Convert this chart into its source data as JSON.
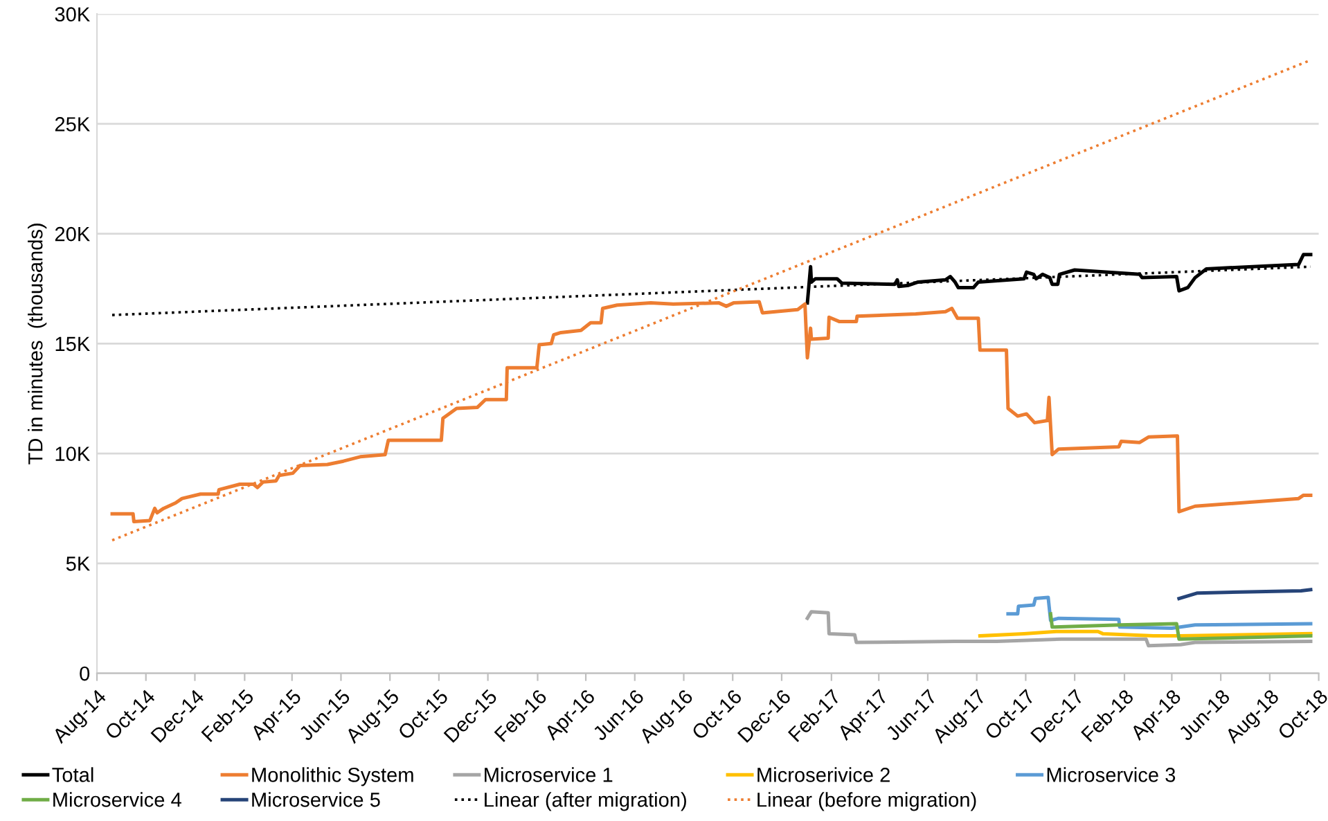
{
  "chart_data": {
    "type": "line",
    "ylabel": "TD in minutes  (thousands)",
    "xlim": [
      "2014-08-01",
      "2018-10-01"
    ],
    "xticks": [
      {
        "value": "2014-08-01",
        "label": "Aug-14"
      },
      {
        "value": "2014-10-01",
        "label": "Oct-14"
      },
      {
        "value": "2014-12-01",
        "label": "Dec-14"
      },
      {
        "value": "2015-02-01",
        "label": "Feb-15"
      },
      {
        "value": "2015-04-01",
        "label": "Apr-15"
      },
      {
        "value": "2015-06-01",
        "label": "Jun-15"
      },
      {
        "value": "2015-08-01",
        "label": "Aug-15"
      },
      {
        "value": "2015-10-01",
        "label": "Oct-15"
      },
      {
        "value": "2015-12-01",
        "label": "Dec-15"
      },
      {
        "value": "2016-02-01",
        "label": "Feb-16"
      },
      {
        "value": "2016-04-01",
        "label": "Apr-16"
      },
      {
        "value": "2016-06-01",
        "label": "Jun-16"
      },
      {
        "value": "2016-08-01",
        "label": "Aug-16"
      },
      {
        "value": "2016-10-01",
        "label": "Oct-16"
      },
      {
        "value": "2016-12-01",
        "label": "Dec-16"
      },
      {
        "value": "2017-02-01",
        "label": "Feb-17"
      },
      {
        "value": "2017-04-01",
        "label": "Apr-17"
      },
      {
        "value": "2017-06-01",
        "label": "Jun-17"
      },
      {
        "value": "2017-08-01",
        "label": "Aug-17"
      },
      {
        "value": "2017-10-01",
        "label": "Oct-17"
      },
      {
        "value": "2017-12-01",
        "label": "Dec-17"
      },
      {
        "value": "2018-02-01",
        "label": "Feb-18"
      },
      {
        "value": "2018-04-01",
        "label": "Apr-18"
      },
      {
        "value": "2018-06-01",
        "label": "Jun-18"
      },
      {
        "value": "2018-08-01",
        "label": "Aug-18"
      },
      {
        "value": "2018-10-01",
        "label": "Oct-18"
      }
    ],
    "ylim": [
      0,
      30000
    ],
    "yticks": [
      0,
      {
        "value": 5000,
        "label": "5K"
      },
      {
        "value": 10000,
        "label": "10K"
      },
      {
        "value": 15000,
        "label": "15K"
      },
      {
        "value": 20000,
        "label": "20K"
      },
      {
        "value": 25000,
        "label": "25K"
      },
      {
        "value": 30000,
        "label": "30K"
      }
    ],
    "grid": "y",
    "legend": "bottom",
    "marker": "none",
    "series": [
      {
        "name": "Total",
        "color": "#000000",
        "x": [
          "2017-01-02",
          "2017-01-06",
          "2017-01-07",
          "2017-01-12",
          "2017-02-08",
          "2017-02-14",
          "2017-04-21",
          "2017-04-24",
          "2017-04-26",
          "2017-05-08",
          "2017-05-20",
          "2017-06-23",
          "2017-06-29",
          "2017-07-05",
          "2017-07-09",
          "2017-07-28",
          "2017-08-03",
          "2017-09-29",
          "2017-10-02",
          "2017-10-11",
          "2017-10-14",
          "2017-10-22",
          "2017-10-31",
          "2017-11-03",
          "2017-11-10",
          "2017-11-12",
          "2017-12-01",
          "2018-02-20",
          "2018-02-23",
          "2018-04-07",
          "2018-04-10",
          "2018-04-21",
          "2018-04-30",
          "2018-05-14",
          "2018-09-06",
          "2018-09-12",
          "2018-09-21"
        ],
        "values": [
          16850,
          18500,
          17800,
          17950,
          17950,
          17750,
          17700,
          17900,
          17600,
          17650,
          17800,
          17900,
          18050,
          17800,
          17550,
          17550,
          17800,
          17950,
          18250,
          18150,
          17950,
          18150,
          18000,
          17700,
          17700,
          18150,
          18350,
          18150,
          18000,
          18050,
          17400,
          17550,
          18000,
          18400,
          18600,
          19050,
          19050
        ]
      },
      {
        "name": "Monolithic System",
        "color": "#ed7d31",
        "x": [
          "2014-08-20",
          "2014-09-15",
          "2014-09-16",
          "2014-10-06",
          "2014-10-12",
          "2014-10-15",
          "2014-10-23",
          "2014-11-07",
          "2014-11-15",
          "2014-12-08",
          "2014-12-30",
          "2014-12-31",
          "2015-01-26",
          "2015-02-12",
          "2015-02-17",
          "2015-02-24",
          "2015-03-12",
          "2015-03-16",
          "2015-04-02",
          "2015-04-11",
          "2015-05-15",
          "2015-06-04",
          "2015-06-25",
          "2015-07-26",
          "2015-07-30",
          "2015-10-04",
          "2015-10-06",
          "2015-10-23",
          "2015-11-18",
          "2015-11-28",
          "2015-12-24",
          "2015-12-25",
          "2016-01-31",
          "2016-02-03",
          "2016-02-18",
          "2016-02-21",
          "2016-03-01",
          "2016-03-26",
          "2016-04-07",
          "2016-04-20",
          "2016-04-22",
          "2016-05-10",
          "2016-06-21",
          "2016-07-19",
          "2016-09-14",
          "2016-09-23",
          "2016-10-02",
          "2016-11-03",
          "2016-11-07",
          "2016-12-21",
          "2016-12-30",
          "2017-01-02",
          "2017-01-06",
          "2017-01-07",
          "2017-01-28",
          "2017-01-29",
          "2017-02-11",
          "2017-03-04",
          "2017-03-05",
          "2017-05-17",
          "2017-06-23",
          "2017-07-01",
          "2017-07-08",
          "2017-08-03",
          "2017-08-05",
          "2017-09-07",
          "2017-09-09",
          "2017-09-21",
          "2017-10-02",
          "2017-10-12",
          "2017-10-28",
          "2017-10-30",
          "2017-11-03",
          "2017-11-11",
          "2018-01-25",
          "2018-01-28",
          "2018-02-20",
          "2018-03-03",
          "2018-04-08",
          "2018-04-10",
          "2018-04-30",
          "2018-09-06",
          "2018-09-12",
          "2018-09-21"
        ],
        "values": [
          7250,
          7250,
          6900,
          6950,
          7500,
          7300,
          7500,
          7750,
          7950,
          8150,
          8150,
          8350,
          8600,
          8600,
          8450,
          8700,
          8750,
          9000,
          9100,
          9450,
          9500,
          9650,
          9850,
          9950,
          10600,
          10600,
          11600,
          12050,
          12100,
          12450,
          12450,
          13900,
          13900,
          14950,
          15000,
          15400,
          15500,
          15600,
          15950,
          15950,
          16600,
          16750,
          16850,
          16800,
          16850,
          16700,
          16850,
          16900,
          16400,
          16550,
          16800,
          14350,
          15700,
          15200,
          15250,
          16200,
          16000,
          16000,
          16250,
          16350,
          16450,
          16600,
          16150,
          16150,
          14700,
          14700,
          12050,
          11700,
          11800,
          11400,
          11500,
          12550,
          9950,
          10200,
          10300,
          10550,
          10500,
          10750,
          10800,
          7350,
          7600,
          7950,
          8100,
          8100
        ]
      },
      {
        "name": "Microservice 1",
        "color": "#a5a5a5",
        "x": [
          "2017-01-02",
          "2017-01-07",
          "2017-01-28",
          "2017-01-29",
          "2017-03-02",
          "2017-03-04",
          "2017-07-05",
          "2017-08-26",
          "2017-11-14",
          "2018-02-28",
          "2018-03-03",
          "2018-04-12",
          "2018-04-30",
          "2018-09-21"
        ],
        "values": [
          2500,
          2800,
          2750,
          1800,
          1750,
          1400,
          1450,
          1450,
          1550,
          1550,
          1250,
          1300,
          1400,
          1450
        ]
      },
      {
        "name": "Microserivice 2",
        "color": "#ffc000",
        "x": [
          "2017-08-05",
          "2017-09-29",
          "2017-11-08",
          "2017-12-30",
          "2018-01-05",
          "2018-03-09",
          "2018-04-12",
          "2018-09-21"
        ],
        "values": [
          1700,
          1800,
          1900,
          1900,
          1800,
          1700,
          1700,
          1800
        ]
      },
      {
        "name": "Microservice 3",
        "color": "#5b9bd5",
        "x": [
          "2017-09-09",
          "2017-09-21",
          "2017-09-22",
          "2017-10-11",
          "2017-10-13",
          "2017-10-29",
          "2017-11-01",
          "2017-11-11",
          "2018-01-25",
          "2018-01-26",
          "2018-04-01",
          "2018-04-30",
          "2018-09-21"
        ],
        "values": [
          2700,
          2700,
          3050,
          3100,
          3400,
          3450,
          2400,
          2500,
          2450,
          2100,
          2050,
          2200,
          2250
        ]
      },
      {
        "name": "Microservice 4",
        "color": "#70ad47",
        "x": [
          "2017-11-01",
          "2017-11-03",
          "2018-01-26",
          "2018-04-07",
          "2018-04-10",
          "2018-09-21"
        ],
        "values": [
          2700,
          2100,
          2200,
          2250,
          1550,
          1700
        ]
      },
      {
        "name": "Microservice 5",
        "color": "#264478",
        "x": [
          "2018-04-10",
          "2018-05-03",
          "2018-09-09",
          "2018-09-21"
        ],
        "values": [
          3400,
          3650,
          3750,
          3800
        ]
      },
      {
        "name": "Linear (after migration)",
        "color": "#000000",
        "line_style": "dotted",
        "x": [
          "2014-08-20",
          "2018-09-21"
        ],
        "values": [
          16300,
          18500
        ]
      },
      {
        "name": "Linear (before migration)",
        "color": "#ed7d31",
        "line_style": "dotted",
        "x": [
          "2014-08-20",
          "2018-09-21"
        ],
        "values": [
          6050,
          27900
        ]
      }
    ]
  }
}
